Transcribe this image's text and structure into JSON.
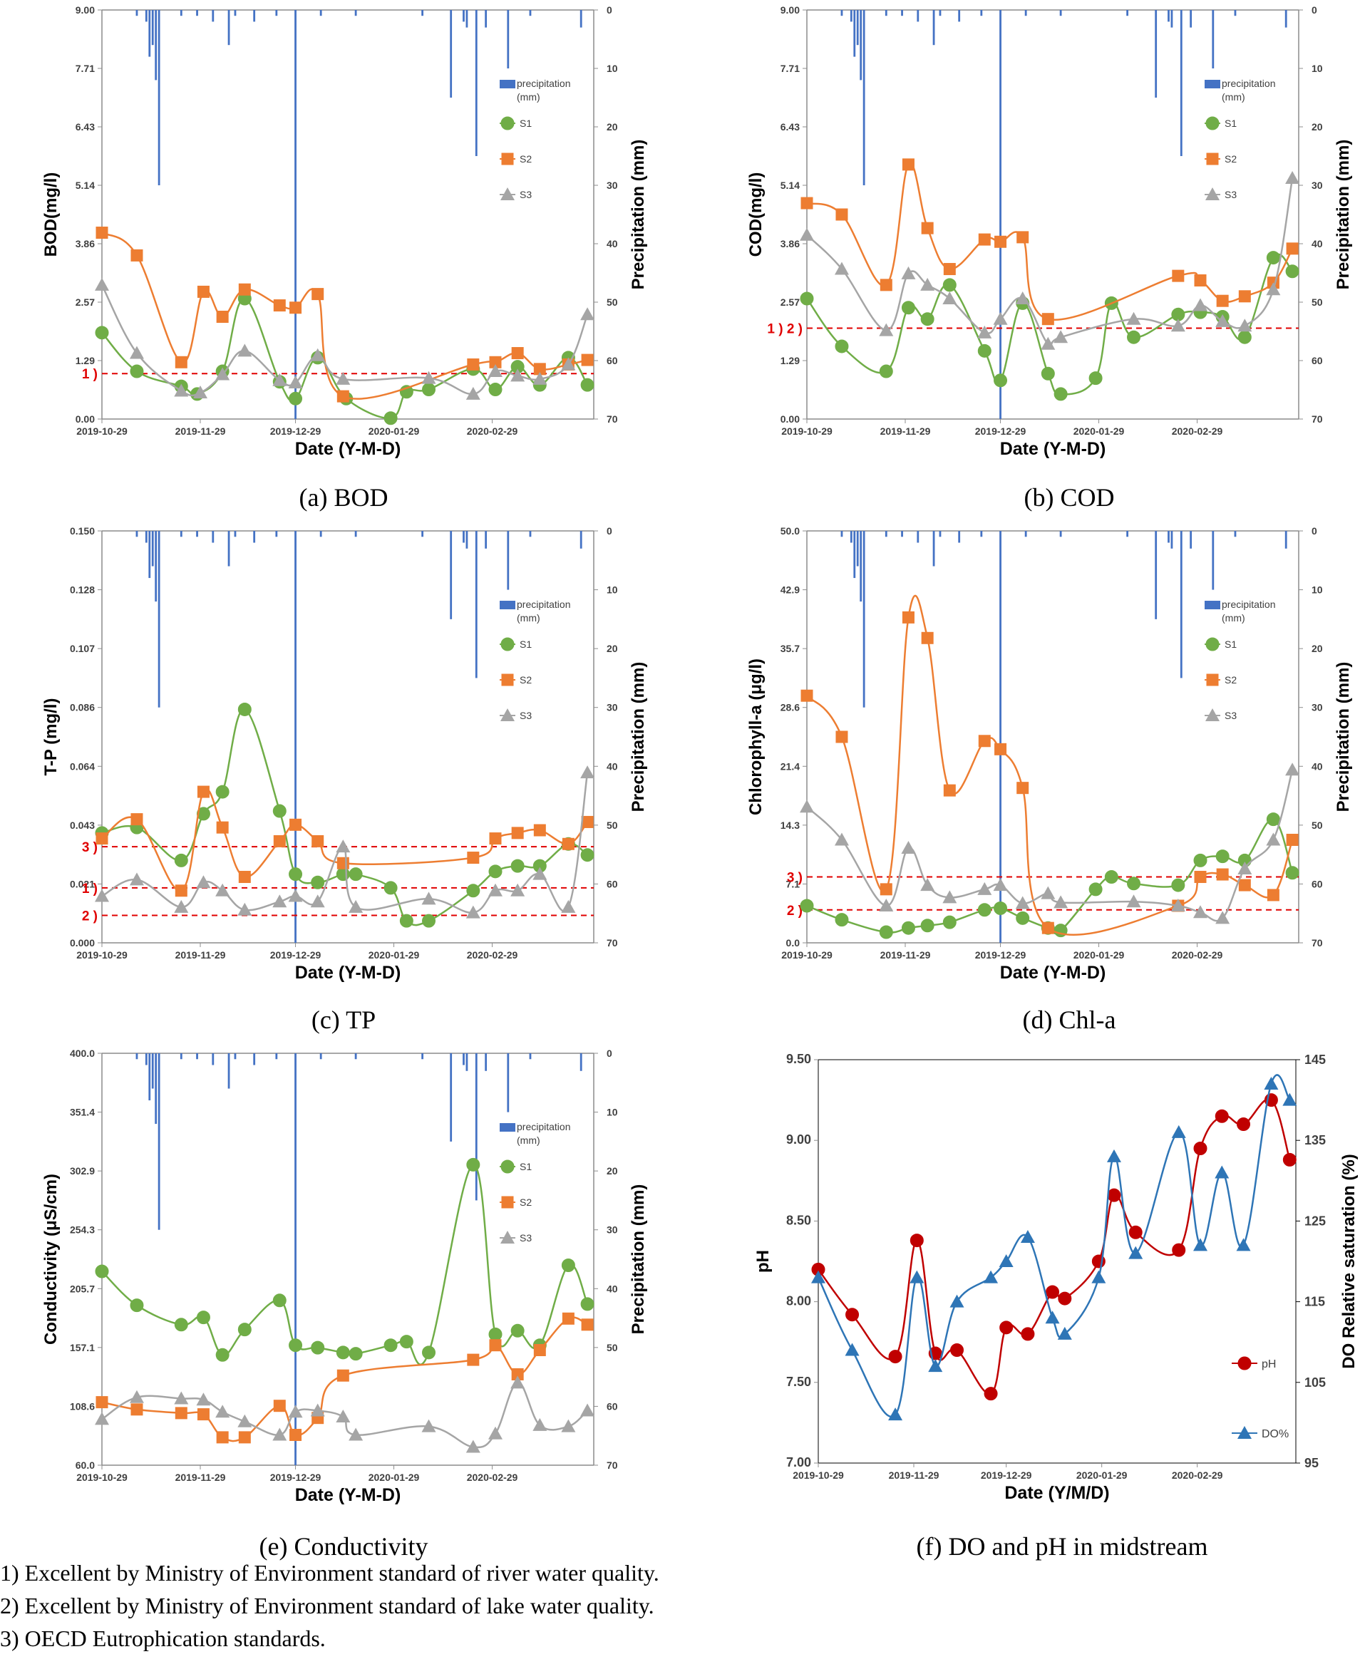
{
  "page": {
    "footnotes": [
      "1) Excellent by Ministry of Environment standard of river water quality.",
      "2) Excellent by Ministry of Environment standard of lake water quality.",
      "3) OECD Eutrophication standards."
    ]
  },
  "colors": {
    "precip": "#4472C4",
    "s1": "#70AD47",
    "s2": "#ED7D31",
    "s3": "#A5A5A5",
    "ph": "#C00000",
    "do": "#2E75B6",
    "threshold": "#E00000"
  },
  "shared": {
    "x_tick_labels": [
      "2019-10-29",
      "2019-11-29",
      "2019-12-29",
      "2020-01-29",
      "2020-02-29"
    ],
    "x_tick_days": [
      0,
      31,
      61,
      92,
      123
    ],
    "x_range_days": [
      0,
      155
    ],
    "precip_axis_label": "Precipitation (mm)",
    "precip_ticks": [
      0,
      10,
      20,
      30,
      40,
      50,
      60,
      70
    ],
    "precip_range": [
      0,
      70
    ],
    "precipitation_days": [
      11,
      14,
      15,
      16,
      17,
      18,
      25,
      30,
      35,
      40,
      42,
      48,
      55,
      61,
      69,
      80,
      101,
      110,
      114,
      115,
      118,
      121,
      128,
      135,
      151
    ],
    "precipitation_mm": [
      1,
      2,
      8,
      6,
      12,
      30,
      1,
      1,
      2,
      6,
      1,
      2,
      1,
      70,
      1,
      1,
      1,
      15,
      2,
      3,
      25,
      3,
      10,
      1,
      3
    ]
  },
  "chart_data": [
    {
      "id": "a",
      "type": "line",
      "caption": "(a) BOD",
      "title": "",
      "xlabel": "Date (Y-M-D)",
      "ylabel": "BOD(mg/l)",
      "ylim": [
        0,
        9
      ],
      "yticks": [
        "0.00",
        "1.29",
        "2.57",
        "3.86",
        "5.14",
        "6.43",
        "7.71",
        "9.00"
      ],
      "legend": [
        "precipitation (mm)",
        "S1",
        "S2",
        "S3"
      ],
      "thresholds": [
        {
          "value": 1.0,
          "label": "1 )"
        }
      ],
      "series": [
        {
          "name": "S1",
          "x": [
            0,
            11,
            25,
            30,
            38,
            45,
            56,
            61,
            68,
            77,
            91,
            96,
            103,
            117,
            124,
            131,
            138,
            147,
            153
          ],
          "y": [
            1.9,
            1.05,
            0.72,
            0.55,
            1.05,
            2.65,
            0.82,
            0.45,
            1.35,
            0.45,
            0.02,
            0.6,
            0.65,
            1.1,
            0.65,
            1.15,
            0.75,
            1.35,
            0.75
          ]
        },
        {
          "name": "S2",
          "x": [
            0,
            11,
            25,
            32,
            38,
            45,
            56,
            61,
            68,
            76,
            117,
            124,
            131,
            138,
            147,
            153
          ],
          "y": [
            4.1,
            3.6,
            1.25,
            2.8,
            2.25,
            2.85,
            2.5,
            2.45,
            2.75,
            0.5,
            1.2,
            1.25,
            1.45,
            1.1,
            1.2,
            1.3
          ]
        },
        {
          "name": "S3",
          "x": [
            0,
            11,
            25,
            31,
            38,
            45,
            56,
            61,
            68,
            76,
            103,
            117,
            124,
            131,
            138,
            147,
            153
          ],
          "y": [
            2.95,
            1.45,
            0.62,
            0.58,
            0.98,
            1.5,
            0.85,
            0.8,
            1.4,
            0.88,
            0.9,
            0.55,
            1.05,
            0.95,
            0.88,
            1.2,
            2.3
          ]
        }
      ]
    },
    {
      "id": "b",
      "type": "line",
      "caption": "(b) COD",
      "title": "",
      "xlabel": "Date (Y-M-D)",
      "ylabel": "COD(mg/l)",
      "ylim": [
        0,
        9
      ],
      "yticks": [
        "0.00",
        "1.29",
        "2.57",
        "3.86",
        "5.14",
        "6.43",
        "7.71",
        "9.00"
      ],
      "legend": [
        "precipitation (mm)",
        "S1",
        "S2",
        "S3"
      ],
      "thresholds": [
        {
          "value": 2.0,
          "label": "1 ) 2 )"
        }
      ],
      "series": [
        {
          "name": "S1",
          "x": [
            0,
            11,
            25,
            32,
            38,
            45,
            56,
            61,
            68,
            76,
            80,
            91,
            96,
            103,
            117,
            124,
            131,
            138,
            147,
            153
          ],
          "y": [
            2.65,
            1.6,
            1.05,
            2.45,
            2.2,
            2.95,
            1.5,
            0.85,
            2.55,
            1.0,
            0.55,
            0.9,
            2.55,
            1.8,
            2.3,
            2.35,
            2.25,
            1.8,
            3.55,
            3.25
          ]
        },
        {
          "name": "S2",
          "x": [
            0,
            11,
            25,
            32,
            38,
            45,
            56,
            61,
            68,
            76,
            117,
            124,
            131,
            138,
            147,
            153
          ],
          "y": [
            4.75,
            4.5,
            2.95,
            5.6,
            4.2,
            3.3,
            3.95,
            3.9,
            4.0,
            2.2,
            3.15,
            3.05,
            2.6,
            2.7,
            3.0,
            3.75
          ]
        },
        {
          "name": "S3",
          "x": [
            0,
            11,
            25,
            32,
            38,
            45,
            56,
            61,
            68,
            76,
            80,
            103,
            117,
            124,
            131,
            138,
            147,
            153
          ],
          "y": [
            4.05,
            3.3,
            1.95,
            3.2,
            2.95,
            2.65,
            1.9,
            2.2,
            2.65,
            1.65,
            1.8,
            2.2,
            2.05,
            2.5,
            2.15,
            2.05,
            2.85,
            5.3
          ]
        }
      ]
    },
    {
      "id": "c",
      "type": "line",
      "caption": "(c) TP",
      "title": "",
      "xlabel": "Date (Y-M-D)",
      "ylabel": "T-P (mg/l)",
      "ylim": [
        0,
        0.15
      ],
      "yticks": [
        "0.000",
        "0.021",
        "0.043",
        "0.064",
        "0.086",
        "0.107",
        "0.128",
        "0.150"
      ],
      "legend": [
        "precipitation (mm)",
        "S1",
        "S2",
        "S3"
      ],
      "thresholds": [
        {
          "value": 0.035,
          "label": "3 )"
        },
        {
          "value": 0.02,
          "label": "1 )"
        },
        {
          "value": 0.01,
          "label": "2 )"
        }
      ],
      "series": [
        {
          "name": "S1",
          "x": [
            0,
            11,
            25,
            32,
            38,
            45,
            56,
            61,
            68,
            76,
            80,
            91,
            96,
            103,
            117,
            124,
            131,
            138,
            147,
            153
          ],
          "y": [
            0.04,
            0.042,
            0.03,
            0.047,
            0.055,
            0.085,
            0.048,
            0.025,
            0.022,
            0.025,
            0.025,
            0.02,
            0.008,
            0.008,
            0.019,
            0.026,
            0.028,
            0.028,
            0.036,
            0.032
          ]
        },
        {
          "name": "S2",
          "x": [
            0,
            11,
            25,
            32,
            38,
            45,
            56,
            61,
            68,
            76,
            117,
            124,
            131,
            138,
            147,
            153
          ],
          "y": [
            0.038,
            0.045,
            0.019,
            0.055,
            0.042,
            0.024,
            0.037,
            0.043,
            0.037,
            0.029,
            0.031,
            0.038,
            0.04,
            0.041,
            0.036,
            0.044
          ]
        },
        {
          "name": "S3",
          "x": [
            0,
            11,
            25,
            32,
            38,
            45,
            56,
            61,
            68,
            76,
            80,
            103,
            117,
            124,
            131,
            138,
            147,
            153
          ],
          "y": [
            0.017,
            0.023,
            0.013,
            0.022,
            0.019,
            0.012,
            0.015,
            0.017,
            0.015,
            0.035,
            0.013,
            0.016,
            0.011,
            0.019,
            0.019,
            0.025,
            0.013,
            0.062
          ]
        }
      ]
    },
    {
      "id": "d",
      "type": "line",
      "caption": "(d) Chl-a",
      "title": "",
      "xlabel": "Date (Y-M-D)",
      "ylabel": "Chlorophyll-a (μg/l)",
      "ylim": [
        0,
        50
      ],
      "yticks": [
        "0.0",
        "7.1",
        "14.3",
        "21.4",
        "28.6",
        "35.7",
        "42.9",
        "50.0"
      ],
      "legend": [
        "precipitation (mm)",
        "S1",
        "S2",
        "S3"
      ],
      "thresholds": [
        {
          "value": 8.0,
          "label": "3 )"
        },
        {
          "value": 4.0,
          "label": "2 )"
        }
      ],
      "series": [
        {
          "name": "S1",
          "x": [
            0,
            11,
            25,
            32,
            38,
            45,
            56,
            61,
            68,
            76,
            80,
            91,
            96,
            103,
            117,
            124,
            131,
            138,
            147,
            153
          ],
          "y": [
            4.5,
            2.8,
            1.3,
            1.8,
            2.1,
            2.5,
            4.0,
            4.2,
            3.0,
            1.8,
            1.5,
            6.5,
            8.0,
            7.2,
            7.0,
            10.0,
            10.5,
            10.0,
            15.0,
            8.5
          ]
        },
        {
          "name": "S2",
          "x": [
            0,
            11,
            25,
            32,
            38,
            45,
            56,
            61,
            68,
            76,
            117,
            124,
            131,
            138,
            147,
            153
          ],
          "y": [
            30.0,
            25.0,
            6.5,
            39.5,
            37.0,
            18.5,
            24.5,
            23.5,
            18.8,
            1.8,
            4.5,
            8.0,
            8.3,
            7.0,
            5.8,
            12.5
          ]
        },
        {
          "name": "S3",
          "x": [
            0,
            11,
            25,
            32,
            38,
            45,
            56,
            61,
            68,
            76,
            80,
            103,
            117,
            124,
            131,
            138,
            147,
            153
          ],
          "y": [
            16.5,
            12.5,
            4.5,
            11.5,
            7.0,
            5.5,
            6.5,
            7.0,
            4.8,
            6.0,
            4.9,
            5.0,
            4.5,
            3.7,
            3.0,
            9.0,
            12.5,
            21.0
          ]
        }
      ]
    },
    {
      "id": "e",
      "type": "line",
      "caption": "(e) Conductivity",
      "title": "",
      "xlabel": "Date (Y-M-D)",
      "ylabel": "Conductivity (μS/cm)",
      "ylim": [
        60,
        400
      ],
      "yticks": [
        "60.0",
        "108.6",
        "157.1",
        "205.7",
        "254.3",
        "302.9",
        "351.4",
        "400.0"
      ],
      "legend": [
        "precipitation (mm)",
        "S1",
        "S2",
        "S3"
      ],
      "thresholds": [],
      "series": [
        {
          "name": "S1",
          "x": [
            0,
            11,
            25,
            32,
            38,
            45,
            56,
            61,
            68,
            76,
            80,
            91,
            96,
            103,
            117,
            124,
            131,
            138,
            147,
            153
          ],
          "y": [
            220,
            192,
            176,
            182,
            151,
            172,
            196,
            159,
            157,
            153,
            152,
            159,
            162,
            153,
            308,
            168,
            171,
            159,
            225,
            193
          ]
        },
        {
          "name": "S2",
          "x": [
            0,
            11,
            25,
            32,
            38,
            45,
            56,
            61,
            68,
            76,
            117,
            124,
            131,
            138,
            147,
            153
          ],
          "y": [
            112,
            106,
            103,
            102,
            83,
            83,
            109,
            85,
            99,
            134,
            147,
            159,
            135,
            155,
            181,
            176
          ]
        },
        {
          "name": "S3",
          "x": [
            0,
            11,
            25,
            32,
            38,
            45,
            56,
            61,
            68,
            76,
            80,
            103,
            117,
            124,
            131,
            138,
            147,
            153
          ],
          "y": [
            98,
            116,
            115,
            114,
            104,
            96,
            85,
            104,
            105,
            100,
            85,
            92,
            75,
            86,
            128,
            93,
            92,
            105
          ]
        }
      ]
    },
    {
      "id": "f",
      "type": "line",
      "caption": "(f) DO and pH in midstream",
      "title": "",
      "xlabel": "Date (Y/M/D)",
      "ylabel": "pH",
      "y2label": "DO Relative saturation (%)",
      "ylim": [
        7.0,
        9.5
      ],
      "yticks": [
        "7.00",
        "7.50",
        "8.00",
        "8.50",
        "9.00",
        "9.50"
      ],
      "y2lim": [
        95,
        145
      ],
      "y2ticks": [
        "95",
        "105",
        "115",
        "125",
        "135",
        "145"
      ],
      "legend": [
        "pH",
        "DO%"
      ],
      "thresholds": [],
      "series": [
        {
          "name": "pH",
          "axis": "left",
          "x": [
            0,
            11,
            25,
            32,
            38,
            45,
            56,
            61,
            68,
            76,
            80,
            91,
            96,
            103,
            117,
            124,
            131,
            138,
            147,
            153
          ],
          "y": [
            8.2,
            7.92,
            7.66,
            8.38,
            7.68,
            7.7,
            7.43,
            7.84,
            7.8,
            8.06,
            8.02,
            8.25,
            8.66,
            8.43,
            8.32,
            8.95,
            9.15,
            9.1,
            9.25,
            8.88
          ]
        },
        {
          "name": "DO%",
          "axis": "right",
          "x": [
            0,
            11,
            25,
            32,
            38,
            45,
            56,
            61,
            68,
            76,
            80,
            91,
            96,
            103,
            117,
            124,
            131,
            138,
            147,
            153
          ],
          "y": [
            118,
            109,
            101,
            118,
            107,
            115,
            118,
            120,
            123,
            113,
            111,
            118,
            133,
            121,
            136,
            122,
            131,
            122,
            142,
            140
          ]
        }
      ]
    }
  ]
}
